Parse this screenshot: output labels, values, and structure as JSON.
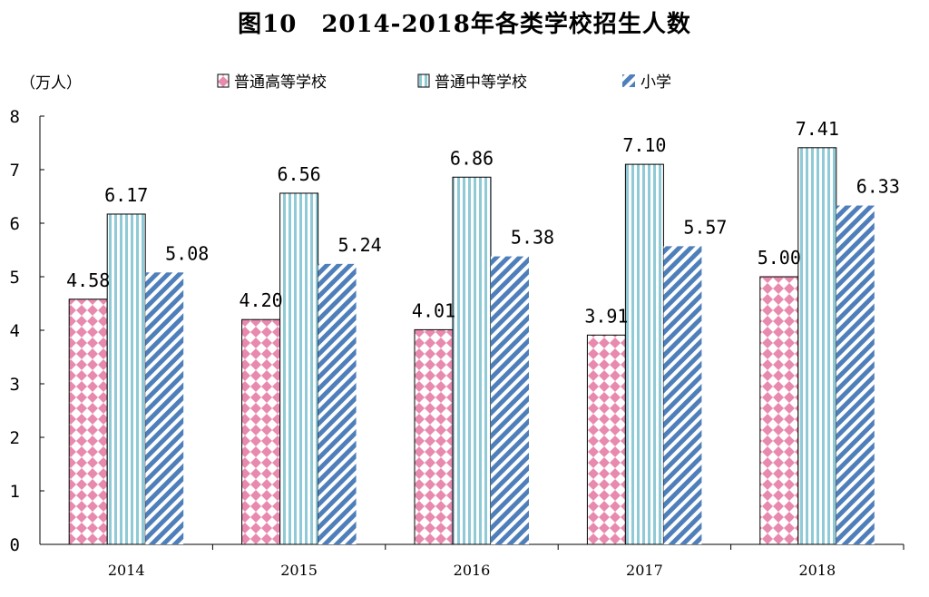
{
  "chart_data": {
    "type": "bar",
    "title": "图10　2014-2018年各类学校招生人数",
    "unit_label": "（万人）",
    "categories": [
      "2014",
      "2015",
      "2016",
      "2017",
      "2018"
    ],
    "series": [
      {
        "name": "普通高等学校",
        "values": [
          4.58,
          4.2,
          4.01,
          3.91,
          5.0
        ],
        "labels": [
          "4.58",
          "4.20",
          "4.01",
          "3.91",
          "5.00"
        ],
        "color": "#e07aa0",
        "pattern": "pink-diamond"
      },
      {
        "name": "普通中等学校",
        "values": [
          6.17,
          6.56,
          6.86,
          7.1,
          7.41
        ],
        "labels": [
          "6.17",
          "6.56",
          "6.86",
          "7.10",
          "7.41"
        ],
        "color": "#7ec3cf",
        "pattern": "vertical-stripes"
      },
      {
        "name": "小学",
        "values": [
          5.08,
          5.24,
          5.38,
          5.57,
          6.33
        ],
        "labels": [
          "5.08",
          "5.24",
          "5.38",
          "5.57",
          "6.33"
        ],
        "color": "#4f7fba",
        "pattern": "diagonal-hatch"
      }
    ],
    "y_ticks": [
      "0",
      "1",
      "2",
      "3",
      "4",
      "5",
      "6",
      "7",
      "8"
    ],
    "ylim": [
      0,
      8
    ],
    "grid": false,
    "legend_position": "top"
  }
}
